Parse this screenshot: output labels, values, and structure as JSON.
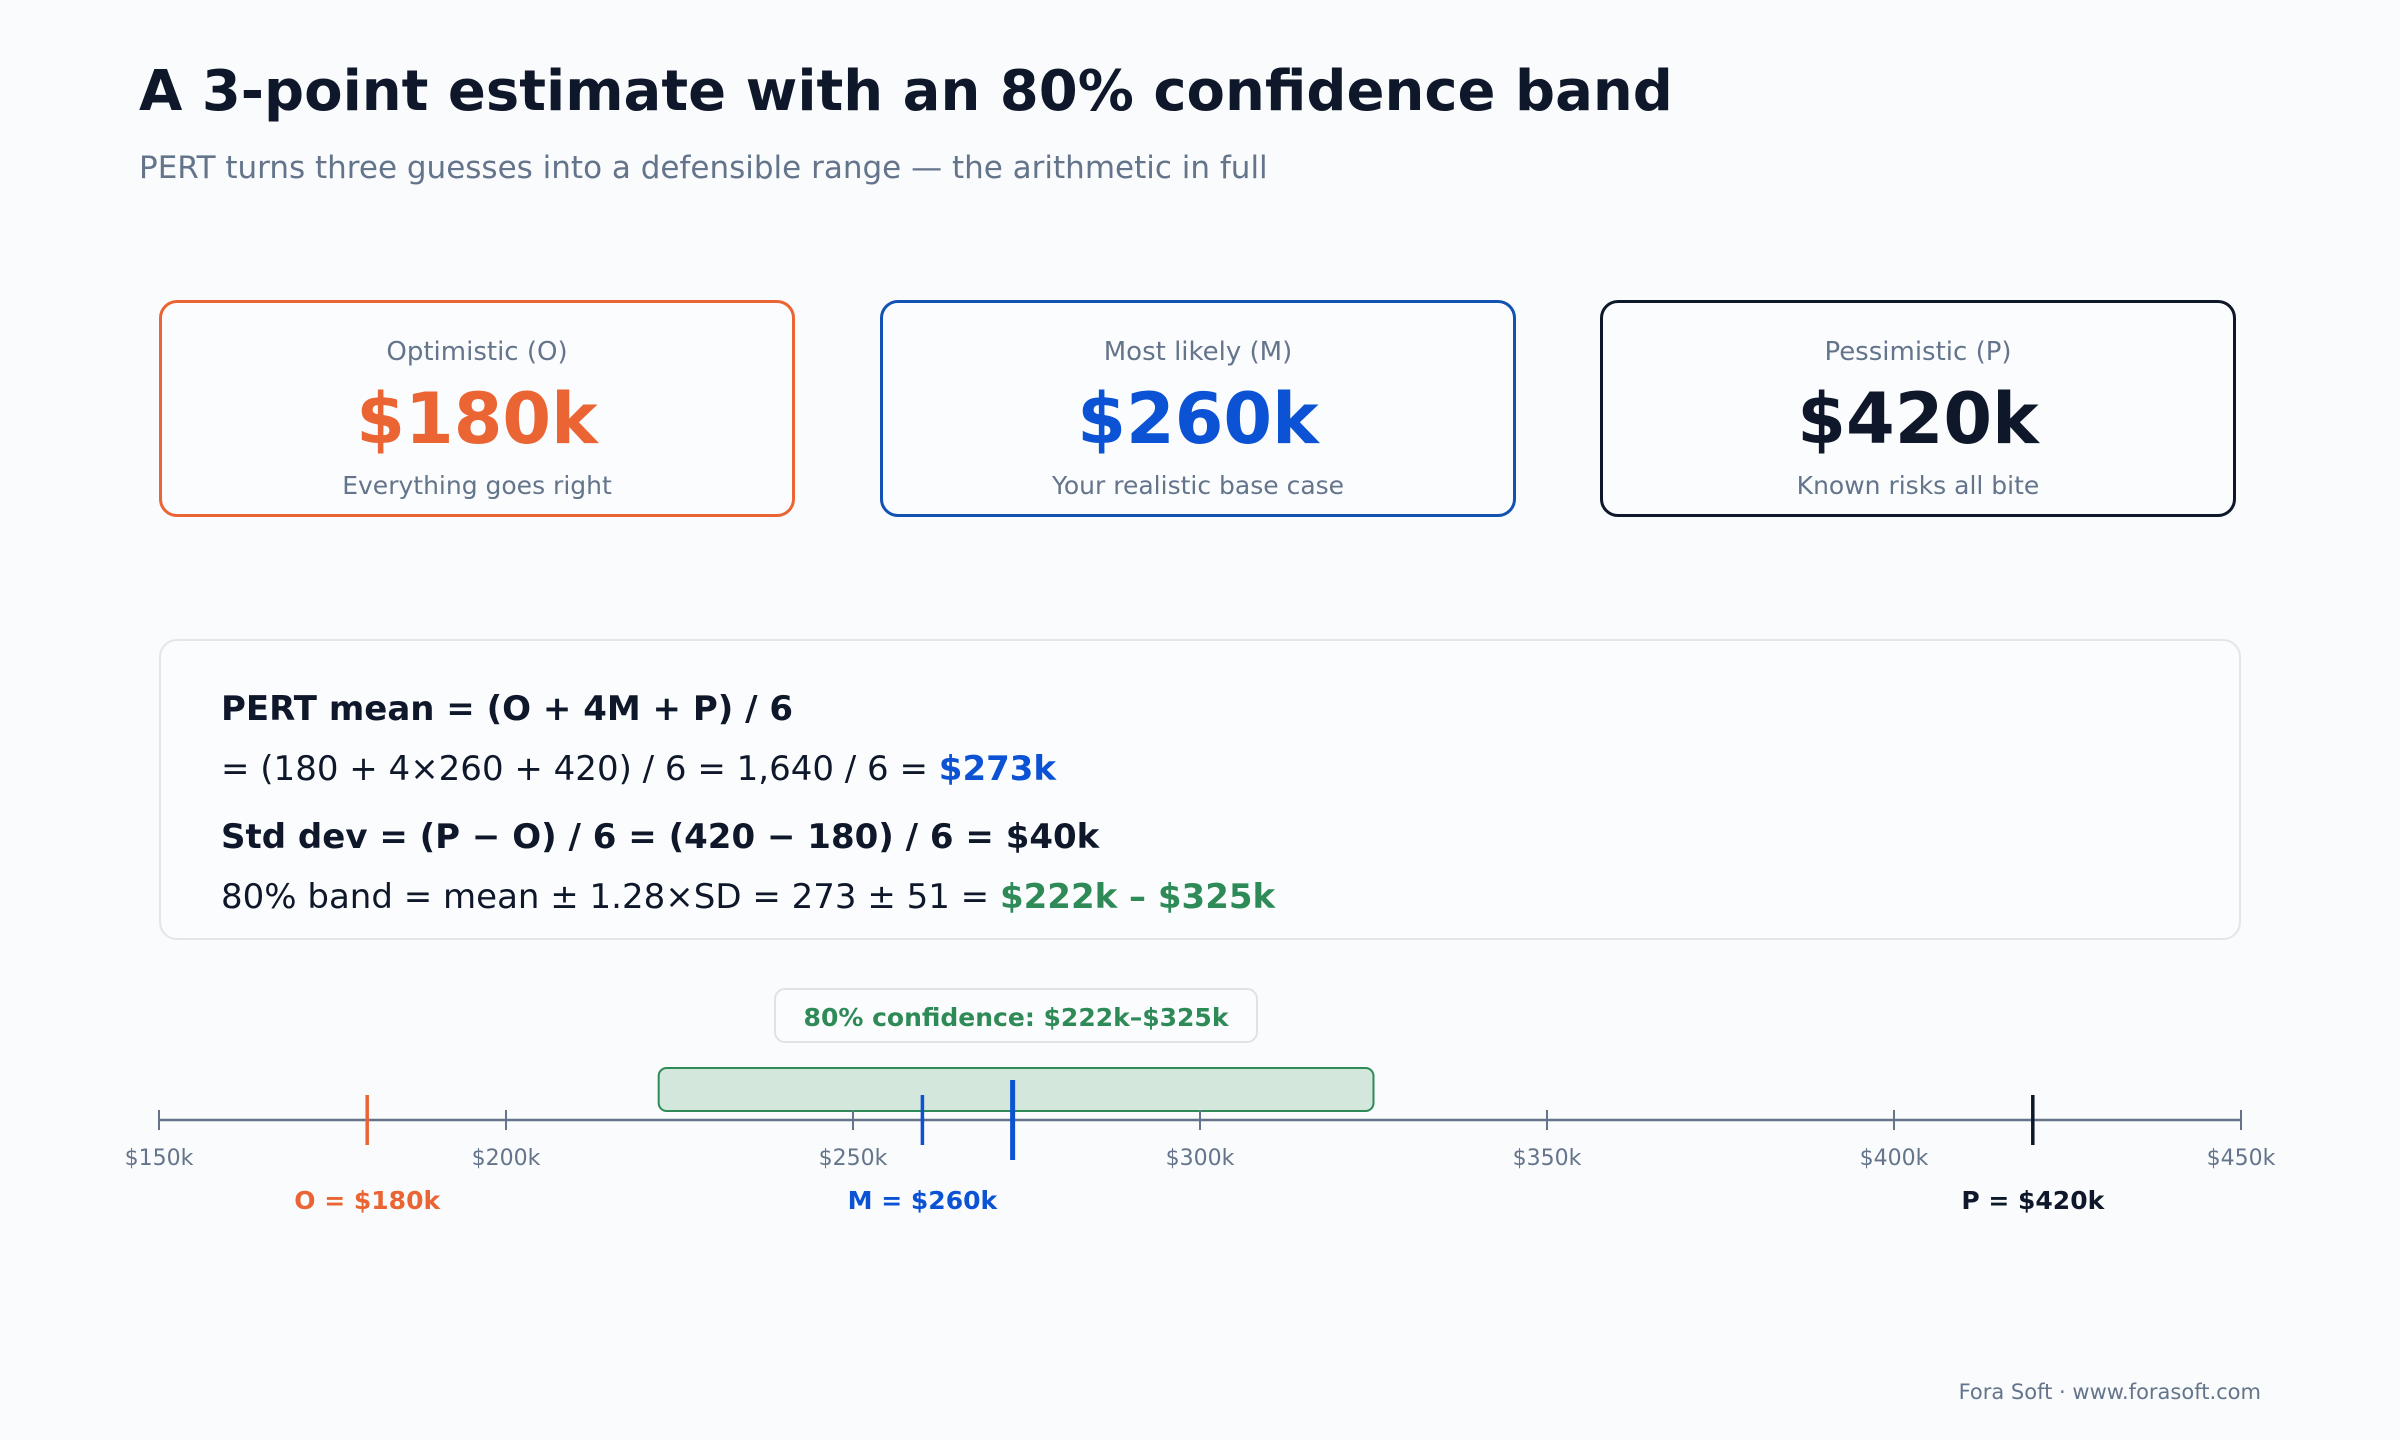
{
  "header": {
    "title": "A 3-point estimate with an 80% confidence band",
    "subtitle": "PERT turns three guesses into a defensible range — the arithmetic in full"
  },
  "cards": [
    {
      "label": "Optimistic (O)",
      "value": "$180k",
      "note": "Everything goes right",
      "color": "#ea6533"
    },
    {
      "label": "Most likely (M)",
      "value": "$260k",
      "note": "Your realistic base case",
      "color": "#0b52d4"
    },
    {
      "label": "Pessimistic (P)",
      "value": "$420k",
      "note": "Known risks all bite",
      "color": "#0f172a"
    }
  ],
  "formula": {
    "line1": "PERT mean = (O + 4M + P) / 6",
    "line2_prefix": "= (180 + 4×260 + 420) / 6 = 1,640 / 6 = ",
    "line2_result": "$273k",
    "line3": "Std dev = (P − O) / 6 = (420 − 180) / 6 = $40k",
    "line4_prefix": "80% band = mean ± 1.28×SD = 273 ± 51 = ",
    "line4_result": "$222k – $325k"
  },
  "axis": {
    "min": 150,
    "max": 450,
    "ticks": [
      {
        "value": 150,
        "label": "$150k"
      },
      {
        "value": 200,
        "label": "$200k"
      },
      {
        "value": 250,
        "label": "$250k"
      },
      {
        "value": 300,
        "label": "$300k"
      },
      {
        "value": 350,
        "label": "$350k"
      },
      {
        "value": 400,
        "label": "$400k"
      },
      {
        "value": 450,
        "label": "$450k"
      }
    ],
    "band": {
      "low": 222,
      "high": 325,
      "label": "80% confidence: $222k–$325k",
      "color": "#2e8a57"
    },
    "mean": {
      "value": 273,
      "color": "#0b52d4"
    },
    "markers": [
      {
        "value": 180,
        "label": "O = $180k",
        "color": "#ea6533"
      },
      {
        "value": 260,
        "label": "M = $260k",
        "color": "#0b52d4"
      },
      {
        "value": 420,
        "label": "P = $420k",
        "color": "#0f172a"
      }
    ]
  },
  "footer": {
    "text": "Fora Soft · www.forasoft.com"
  }
}
